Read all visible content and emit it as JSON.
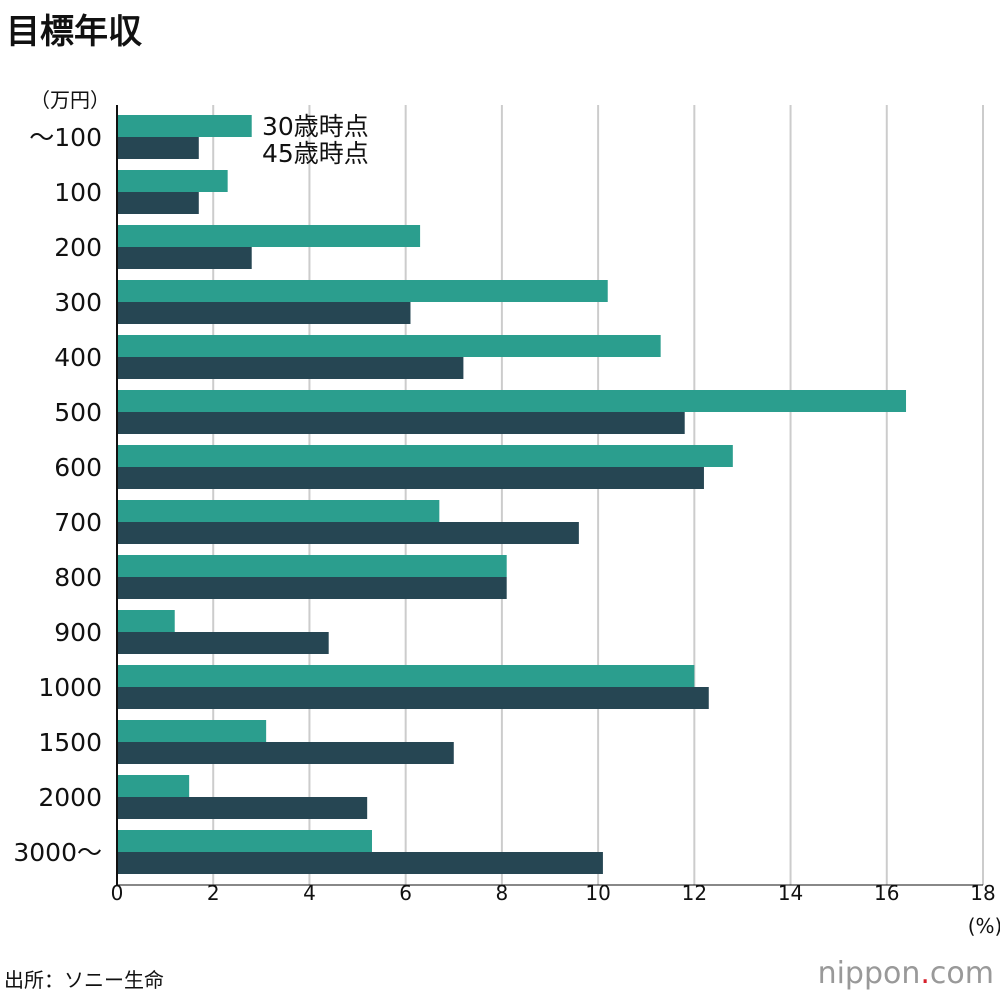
{
  "title": "目標年収",
  "source": "出所：ソニー生命",
  "logo": {
    "text": "nippon",
    "dot": ".",
    "suffix": "com"
  },
  "chart_data": {
    "type": "bar",
    "orientation": "horizontal",
    "title": "目標年収",
    "ylabel": "（万円）",
    "xlabel": "(%)",
    "xlim": [
      0,
      18
    ],
    "xticks": [
      0,
      2,
      4,
      6,
      8,
      10,
      12,
      14,
      16,
      18
    ],
    "grid": true,
    "legend_placement": "top",
    "categories": [
      "〜100",
      "100",
      "200",
      "300",
      "400",
      "500",
      "600",
      "700",
      "800",
      "900",
      "1000",
      "1500",
      "2000",
      "3000〜"
    ],
    "series": [
      {
        "name": "30歳時点",
        "color": "#2b9e8e",
        "values": [
          2.8,
          2.3,
          6.3,
          10.2,
          11.3,
          16.4,
          12.8,
          6.7,
          8.1,
          1.2,
          12.0,
          3.1,
          1.5,
          5.3
        ]
      },
      {
        "name": "45歳時点",
        "color": "#264653",
        "values": [
          1.7,
          1.7,
          2.8,
          6.1,
          7.2,
          11.8,
          12.2,
          9.6,
          8.1,
          4.4,
          12.3,
          7.0,
          5.2,
          10.1
        ]
      }
    ]
  }
}
